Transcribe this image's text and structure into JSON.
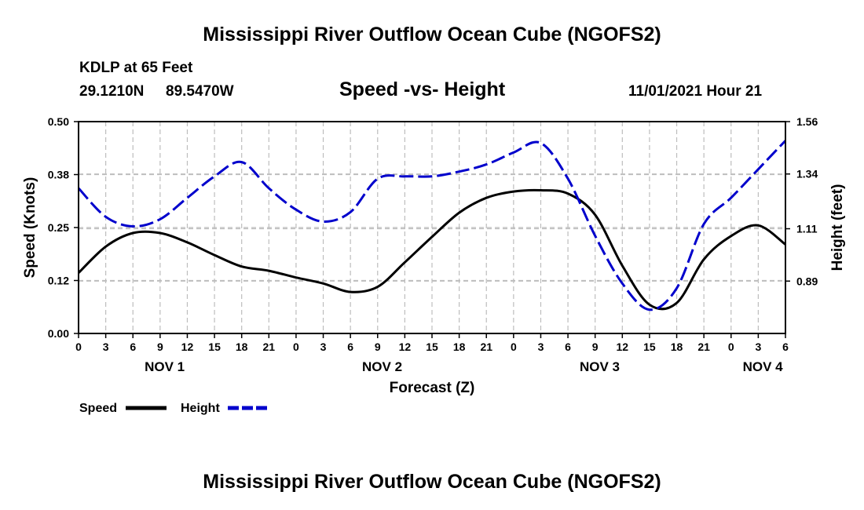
{
  "page": {
    "title": "Mississippi River Outflow Ocean Cube (NGOFS2)",
    "footer_title": "Mississippi River Outflow Ocean Cube (NGOFS2)",
    "station": "KDLP at 65 Feet",
    "lat": "29.1210N",
    "lon": "89.5470W",
    "datetime": "11/01/2021 Hour 21"
  },
  "chart_data": {
    "type": "line",
    "title": "Speed -vs- Height",
    "xlabel": "Forecast (Z)",
    "ylabel": "Speed (Knots)",
    "y2label": "Height (feet)",
    "x_range_hours": [
      0,
      78
    ],
    "ylim": [
      0,
      0.5
    ],
    "y2lim": [
      0.67,
      1.56
    ],
    "y_ticks": [
      "0.00",
      "0.12",
      "0.25",
      "0.38",
      "0.50"
    ],
    "y_tick_values": [
      0,
      0.125,
      0.25,
      0.375,
      0.5
    ],
    "y2_ticks": [
      "0.89",
      "1.11",
      "1.34",
      "1.56"
    ],
    "y2_tick_values": [
      0.89,
      1.11,
      1.34,
      1.56
    ],
    "x_ticks": [
      "0",
      "3",
      "6",
      "9",
      "12",
      "15",
      "18",
      "21",
      "0",
      "3",
      "6",
      "9",
      "12",
      "15",
      "18",
      "21",
      "0",
      "3",
      "6",
      "9",
      "12",
      "15",
      "18",
      "21",
      "0",
      "3",
      "6"
    ],
    "x_tick_hours": [
      0,
      3,
      6,
      9,
      12,
      15,
      18,
      21,
      24,
      27,
      30,
      33,
      36,
      39,
      42,
      45,
      48,
      51,
      54,
      57,
      60,
      63,
      66,
      69,
      72,
      75,
      78
    ],
    "day_labels": [
      {
        "label": "NOV 1",
        "hour": 9.5
      },
      {
        "label": "NOV 2",
        "hour": 33.5
      },
      {
        "label": "NOV 3",
        "hour": 57.5
      },
      {
        "label": "NOV 4",
        "hour": 75.5
      }
    ],
    "legend_position": "bottom-left",
    "series": [
      {
        "name": "Speed",
        "axis": "left",
        "color": "#000000",
        "style": "solid",
        "hours": [
          0,
          3,
          6,
          9,
          12,
          15,
          18,
          21,
          24,
          27,
          30,
          33,
          36,
          39,
          42,
          45,
          48,
          51,
          54,
          57,
          60,
          63,
          66,
          69,
          72,
          75,
          78
        ],
        "values": [
          0.143,
          0.205,
          0.237,
          0.237,
          0.215,
          0.185,
          0.158,
          0.148,
          0.132,
          0.118,
          0.098,
          0.11,
          0.168,
          0.228,
          0.285,
          0.32,
          0.335,
          0.338,
          0.33,
          0.28,
          0.16,
          0.068,
          0.072,
          0.175,
          0.23,
          0.255,
          0.21
        ]
      },
      {
        "name": "Height",
        "axis": "right",
        "color": "#0000cc",
        "style": "dashed",
        "hours": [
          0,
          3,
          6,
          9,
          12,
          15,
          18,
          21,
          24,
          27,
          30,
          33,
          36,
          39,
          42,
          45,
          48,
          51,
          54,
          57,
          60,
          63,
          66,
          69,
          72,
          75,
          78
        ],
        "values": [
          1.28,
          1.16,
          1.12,
          1.15,
          1.24,
          1.33,
          1.39,
          1.28,
          1.19,
          1.14,
          1.18,
          1.32,
          1.33,
          1.33,
          1.35,
          1.38,
          1.43,
          1.47,
          1.32,
          1.08,
          0.88,
          0.77,
          0.86,
          1.13,
          1.24,
          1.36,
          1.48
        ]
      }
    ]
  }
}
